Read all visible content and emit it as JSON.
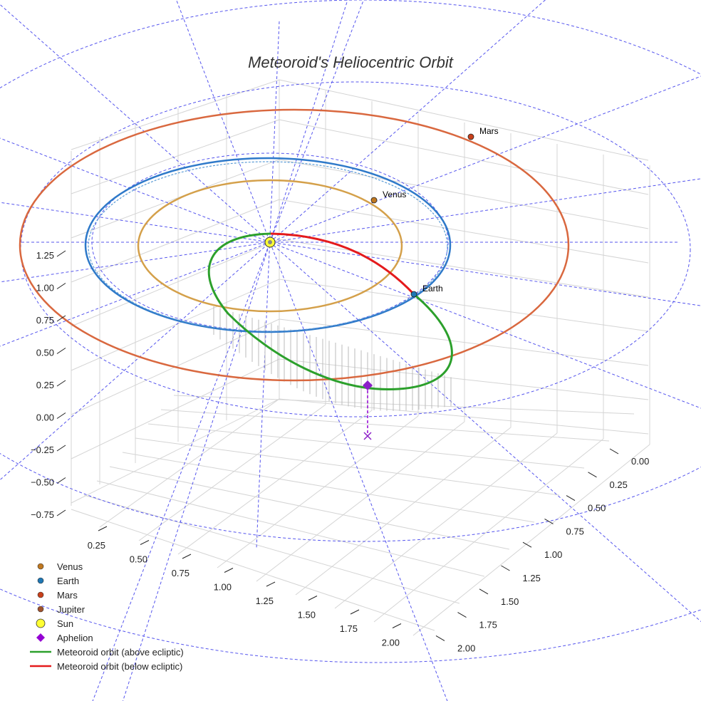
{
  "chart_data": {
    "type": "scatter3d",
    "title": "Meteoroid's Heliocentric Orbit",
    "axes": {
      "z_ticks": [
        "1.25",
        "1.00",
        "0.75",
        "0.50",
        "0.25",
        "0.00",
        "−0.25",
        "−0.50",
        "−0.75"
      ],
      "x_ticks": [
        "0.25",
        "0.50",
        "0.75",
        "1.00",
        "1.25",
        "1.50",
        "1.75",
        "2.00"
      ],
      "y_ticks": [
        "0.00",
        "0.25",
        "0.50",
        "0.75",
        "1.00",
        "1.25",
        "1.50",
        "1.75",
        "2.00"
      ]
    },
    "orbits": [
      {
        "name": "Venus",
        "semi_major_au": 0.72,
        "color": "#D4A04A"
      },
      {
        "name": "Earth",
        "semi_major_au": 1.0,
        "color": "#2E79C9"
      },
      {
        "name": "Mars",
        "semi_major_au": 1.52,
        "color": "#D9683F"
      }
    ],
    "points": [
      {
        "name": "Venus",
        "label": "Venus",
        "color": "#C07820"
      },
      {
        "name": "Earth",
        "label": "Earth",
        "color": "#1F77B4"
      },
      {
        "name": "Mars",
        "label": "Mars",
        "color": "#C8401A"
      },
      {
        "name": "Sun",
        "label": "",
        "color": "#FFFF33"
      },
      {
        "name": "Aphelion",
        "label": "",
        "color": "#8B1FC8"
      }
    ],
    "meteoroid_orbit": {
      "above_ecliptic_color": "#2CA02C",
      "below_ecliptic_color": "#E41A1C"
    },
    "legend": [
      {
        "label": "Venus",
        "symbol": "circle",
        "color": "#C07820"
      },
      {
        "label": "Earth",
        "symbol": "circle",
        "color": "#1F77B4"
      },
      {
        "label": "Mars",
        "symbol": "circle",
        "color": "#C8401A"
      },
      {
        "label": "Jupiter",
        "symbol": "circle",
        "color": "#A0522D"
      },
      {
        "label": "Sun",
        "symbol": "circle-large",
        "color": "#FFFF33"
      },
      {
        "label": "Aphelion",
        "symbol": "diamond",
        "color": "#9400D3"
      },
      {
        "label": "Meteoroid orbit (above ecliptic)",
        "symbol": "line",
        "color": "#2CA02C"
      },
      {
        "label": "Meteoroid orbit (below ecliptic)",
        "symbol": "line",
        "color": "#E41A1C"
      }
    ]
  }
}
